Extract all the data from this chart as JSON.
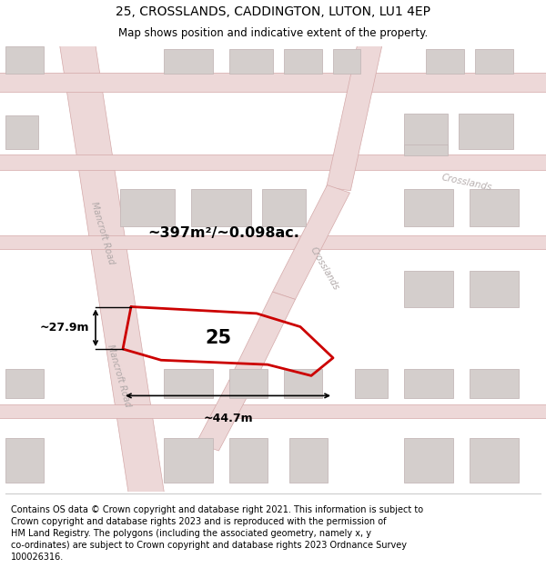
{
  "title": "25, CROSSLANDS, CADDINGTON, LUTON, LU1 4EP",
  "subtitle": "Map shows position and indicative extent of the property.",
  "footer_lines": [
    "Contains OS data © Crown copyright and database right 2021. This information is subject to",
    "Crown copyright and database rights 2023 and is reproduced with the permission of",
    "HM Land Registry. The polygons (including the associated geometry, namely x, y",
    "co-ordinates) are subject to Crown copyright and database rights 2023 Ordnance Survey",
    "100026316."
  ],
  "map_bg": "#f5f3f3",
  "road_fill": "#edd8d8",
  "road_edge": "#d4a8a8",
  "building_fill": "#d4cecc",
  "building_edge": "#c4b8b8",
  "property_color": "#cc0000",
  "property_label": "25",
  "area_label": "~397m²/~0.098ac.",
  "width_label": "~44.7m",
  "height_label": "~27.9m",
  "road_label_mancroft": "Mancroft Road",
  "road_label_crosslands": "Crosslands",
  "title_fontsize": 10,
  "subtitle_fontsize": 8.5,
  "footer_fontsize": 7.0
}
